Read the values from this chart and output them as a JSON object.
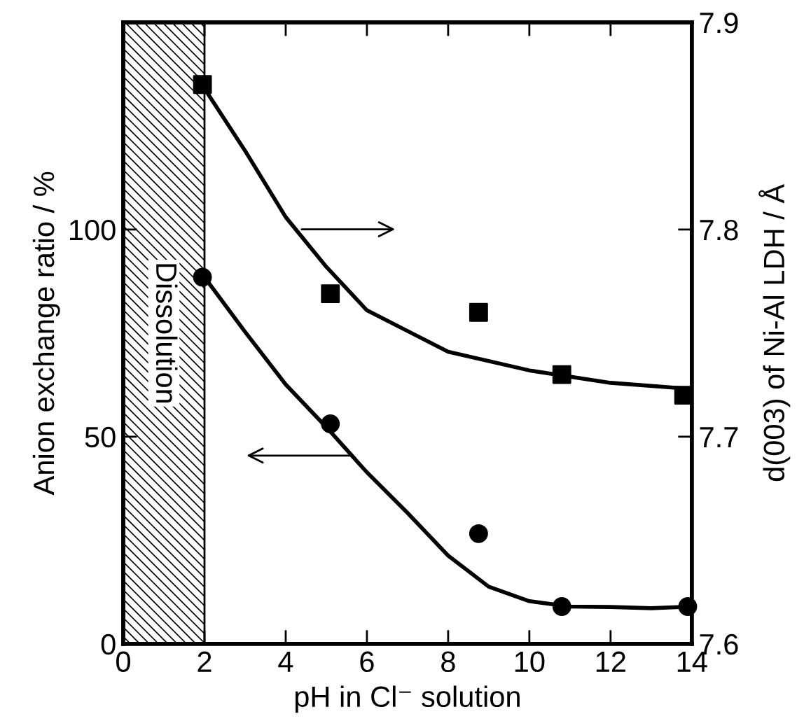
{
  "chart_data": {
    "type": "scatter",
    "xlabel": "pH in Cl⁻ solution",
    "ylabel": "Anion exchange ratio / %",
    "y2label": "d(003) of Ni-Al LDH / Å",
    "xlim": [
      0,
      14
    ],
    "xticks": [
      0,
      2,
      4,
      6,
      8,
      10,
      12,
      14
    ],
    "ylim": [
      0,
      150
    ],
    "yticks": [
      0,
      50,
      100
    ],
    "y2lim": [
      7.6,
      7.9
    ],
    "y2ticks": [
      7.6,
      7.7,
      7.8,
      7.9
    ],
    "grid": false,
    "legend": false,
    "series": [
      {
        "marker": "circle",
        "color": "#000000",
        "x": [
          1.95,
          5.1,
          8.75,
          10.8,
          13.9
        ],
        "values": [
          88.5,
          53.1,
          26.6,
          9.0,
          9.0
        ]
      },
      {
        "type": "line",
        "marker": "none",
        "line_style": "solid",
        "color": "#000000",
        "x": [
          2,
          3,
          4,
          5,
          6,
          7,
          8,
          9,
          10,
          11,
          12,
          13,
          14
        ],
        "values": [
          88.5,
          75.3,
          62.6,
          52.3,
          41.4,
          31.6,
          21.3,
          13.8,
          10.3,
          9.0,
          8.9,
          8.6,
          9.0
        ]
      },
      {
        "marker": "square",
        "color": "#000000",
        "axis": "y2",
        "x": [
          1.95,
          5.1,
          8.75,
          10.8,
          13.8
        ],
        "values": [
          7.87,
          7.769,
          7.76,
          7.73,
          7.72
        ]
      },
      {
        "type": "line",
        "marker": "none",
        "line_style": "solid",
        "color": "#000000",
        "axis": "y2",
        "x": [
          2,
          3,
          4,
          5,
          6,
          7,
          8,
          10,
          12,
          14
        ],
        "values": [
          7.868,
          7.838,
          7.806,
          7.782,
          7.761,
          7.751,
          7.741,
          7.732,
          7.726,
          7.723
        ]
      }
    ],
    "bands": [
      {
        "axis": "x",
        "from": 0,
        "to": 2,
        "label": "Dissolution",
        "color": "#000000"
      }
    ]
  }
}
